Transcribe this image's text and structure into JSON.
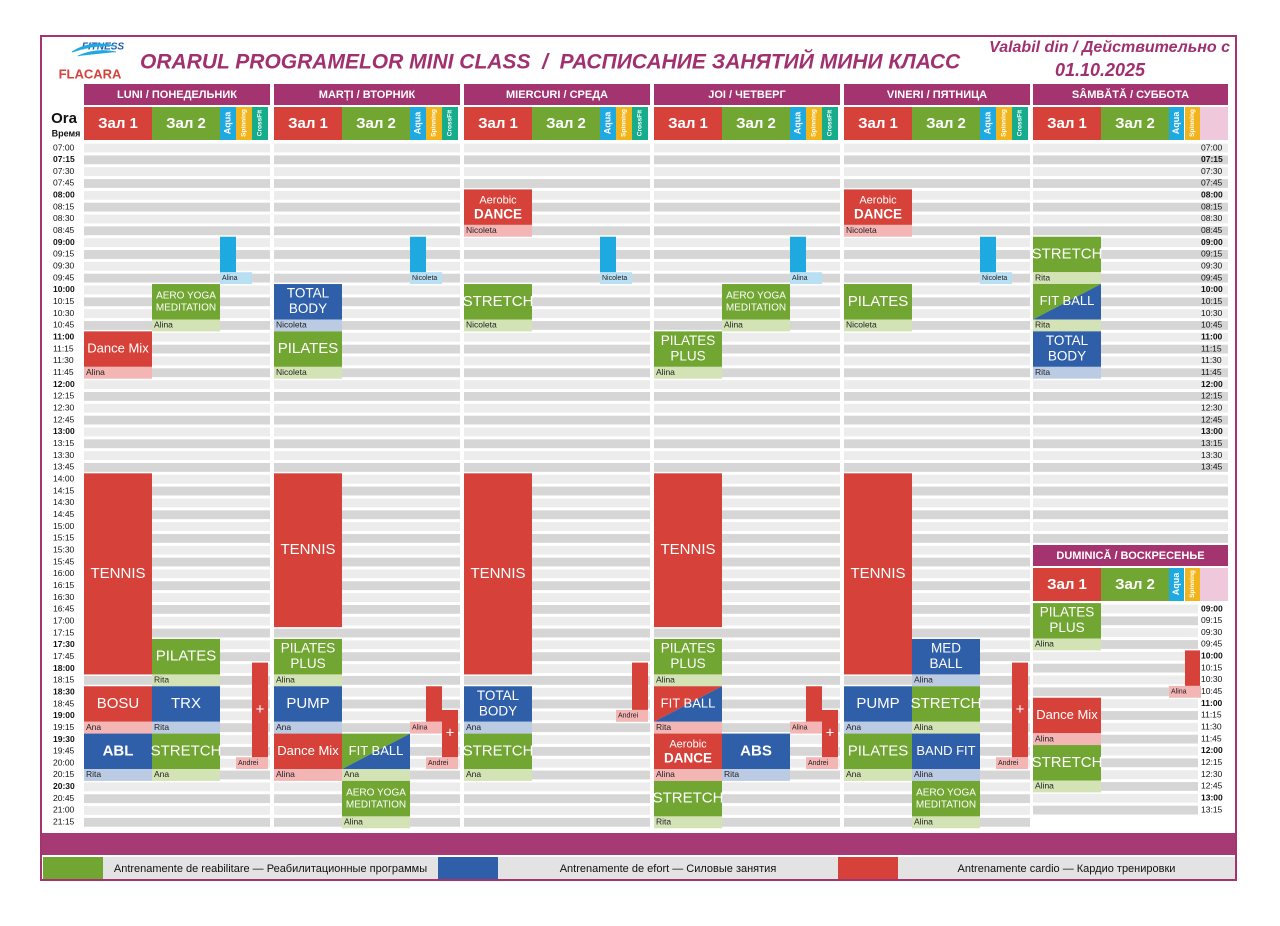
{
  "header": {
    "logo_top": "FITNESS",
    "logo_bottom": "FLACARA",
    "title": "ORARUL PROGRAMELOR MINI CLASS  /  РАСПИСАНИЕ ЗАНЯТИЙ МИНИ КЛАСС",
    "valid_label": "Valabil din / Действительно с",
    "valid_date": "01.10.2025"
  },
  "corner": {
    "label": "Ora",
    "sublabel": "Время"
  },
  "rooms": [
    {
      "name": "Зал 1",
      "color": "#d6423a"
    },
    {
      "name": "Зал 2",
      "color": "#72a633"
    },
    {
      "name": "Aqua",
      "color": "#1ea9e1"
    },
    {
      "name": "Spinning",
      "color": "#f2b41c"
    },
    {
      "name": "CrossFit",
      "color": "#17ad8c"
    }
  ],
  "kinds": {
    "rehab": {
      "color": "#72a633",
      "light": "#d3e3b5",
      "label": "Antrenamente de reabilitare — Реабилитационные программы"
    },
    "effort": {
      "color": "#2f5fa9",
      "light": "#bccbe4",
      "label": "Antrenamente de efort — Силовые занятия"
    },
    "cardio": {
      "color": "#d6423a",
      "light": "#f4b5b5",
      "label": "Antrenamente cardio — Кардио тренировки"
    }
  },
  "legend": [
    "rehab",
    "effort",
    "cardio"
  ],
  "times": [
    "07:00",
    "07:15",
    "07:30",
    "07:45",
    "08:00",
    "08:15",
    "08:30",
    "08:45",
    "09:00",
    "09:15",
    "09:30",
    "09:45",
    "10:00",
    "10:15",
    "10:30",
    "10:45",
    "11:00",
    "11:15",
    "11:30",
    "11:45",
    "12:00",
    "12:15",
    "12:30",
    "12:45",
    "13:00",
    "13:15",
    "13:30",
    "13:45",
    "14:00",
    "14:15",
    "14:30",
    "14:45",
    "15:00",
    "15:15",
    "15:30",
    "15:45",
    "16:00",
    "16:15",
    "16:30",
    "16:45",
    "17:00",
    "17:15",
    "17:30",
    "17:45",
    "18:00",
    "18:15",
    "18:30",
    "18:45",
    "19:00",
    "19:15",
    "19:30",
    "19:45",
    "20:00",
    "20:15",
    "20:30",
    "20:45",
    "21:00",
    "21:15"
  ],
  "bold_times": [
    "07:15",
    "08:00",
    "09:00",
    "10:00",
    "11:00",
    "12:00",
    "13:00",
    "17:30",
    "18:00",
    "18:30",
    "19:00",
    "19:30",
    "20:30"
  ],
  "days": [
    {
      "name": "LUNI / ПОНЕДЕЛЬНИК",
      "rooms": [
        0,
        1,
        2,
        3,
        4
      ]
    },
    {
      "name": "MARȚI / ВТОРНИК",
      "rooms": [
        0,
        1,
        2,
        3,
        4
      ]
    },
    {
      "name": "MIERCURI / СРЕДА",
      "rooms": [
        0,
        1,
        2,
        3,
        4
      ]
    },
    {
      "name": "JOI / ЧЕТВЕРГ",
      "rooms": [
        0,
        1,
        2,
        3,
        4
      ]
    },
    {
      "name": "VINERI / ПЯТНИЦА",
      "rooms": [
        0,
        1,
        2,
        3,
        4
      ]
    },
    {
      "name": "SÂMBĂTĂ / СУББОТА",
      "rooms": [
        0,
        1,
        2,
        3
      ],
      "time_range": [
        "07:00",
        "13:45"
      ]
    },
    {
      "name": "DUMINICĂ / ВОСКРЕСЕНЬЕ",
      "rooms": [
        0,
        1,
        2,
        3
      ],
      "time_range": [
        "09:00",
        "13:15"
      ]
    }
  ],
  "classes": [
    {
      "day": 0,
      "room": 0,
      "start": "11:00",
      "rows": 3,
      "lines": [
        "Dance Mix"
      ],
      "trainer": "Alina",
      "kind": "cardio"
    },
    {
      "day": 0,
      "room": 1,
      "start": "10:00",
      "rows": 3,
      "lines": [
        "AERO YOGA",
        "MEDITATION"
      ],
      "trainer": "Alina",
      "kind": "rehab"
    },
    {
      "day": 0,
      "room": 2,
      "start": "09:00",
      "rows": 3,
      "lines": [],
      "trainer": "Alina"
    },
    {
      "day": 0,
      "room": 0,
      "start": "14:00",
      "rows": 17,
      "lines": [
        "TENNIS"
      ],
      "kind": "cardio"
    },
    {
      "day": 0,
      "room": 1,
      "start": "17:30",
      "rows": 3,
      "lines": [
        "PILATES"
      ],
      "trainer": "Rita",
      "kind": "rehab"
    },
    {
      "day": 0,
      "room": 0,
      "start": "18:30",
      "rows": 3,
      "lines": [
        "BOSU"
      ],
      "trainer": "Ana",
      "kind": "cardio"
    },
    {
      "day": 0,
      "room": 1,
      "start": "18:30",
      "rows": 3,
      "lines": [
        "TRX"
      ],
      "trainer": "Rita",
      "kind": "effort"
    },
    {
      "day": 0,
      "room": 0,
      "start": "19:30",
      "rows": 3,
      "lines": [
        "ABL"
      ],
      "trainer": "Rita",
      "kind": "effort"
    },
    {
      "day": 0,
      "room": 1,
      "start": "19:30",
      "rows": 3,
      "lines": [
        "STRETCH"
      ],
      "trainer": "Ana",
      "kind": "rehab"
    },
    {
      "day": 0,
      "room": 4,
      "start": "18:00",
      "rows": 8,
      "lines": [
        "+"
      ],
      "trainer": "Andrei",
      "kind": "cardio"
    },
    {
      "day": 1,
      "room": 2,
      "start": "09:00",
      "rows": 3,
      "lines": [],
      "trainer": "Nicoleta"
    },
    {
      "day": 1,
      "room": 0,
      "start": "10:00",
      "rows": 3,
      "lines": [
        "TOTAL",
        "BODY"
      ],
      "trainer": "Nicoleta",
      "kind": "effort"
    },
    {
      "day": 1,
      "room": 0,
      "start": "11:00",
      "rows": 3,
      "lines": [
        "PILATES"
      ],
      "trainer": "Nicoleta",
      "kind": "rehab"
    },
    {
      "day": 1,
      "room": 0,
      "start": "14:00",
      "rows": 13,
      "lines": [
        "TENNIS"
      ],
      "kind": "cardio"
    },
    {
      "day": 1,
      "room": 0,
      "start": "17:30",
      "rows": 3,
      "lines": [
        "PILATES",
        "PLUS"
      ],
      "trainer": "Alina",
      "kind": "rehab"
    },
    {
      "day": 1,
      "room": 0,
      "start": "18:30",
      "rows": 3,
      "lines": [
        "PUMP"
      ],
      "trainer": "Ana",
      "kind": "effort"
    },
    {
      "day": 1,
      "room": 0,
      "start": "19:30",
      "rows": 3,
      "lines": [
        "Dance Mix"
      ],
      "trainer": "Alina",
      "kind": "cardio"
    },
    {
      "day": 1,
      "room": 1,
      "start": "19:30",
      "rows": 3,
      "lines": [
        "FIT BALL"
      ],
      "trainer": "Ana",
      "kind": [
        "rehab",
        "effort"
      ]
    },
    {
      "day": 1,
      "room": 1,
      "start": "20:30",
      "rows": 3,
      "lines": [
        "AERO YOGA",
        "MEDITATION"
      ],
      "trainer": "Alina",
      "kind": "rehab"
    },
    {
      "day": 1,
      "room": 3,
      "start": "18:30",
      "rows": 3,
      "lines": [],
      "trainer": "Alina",
      "kind": "cardio"
    },
    {
      "day": 1,
      "room": 4,
      "start": "19:00",
      "rows": 4,
      "lines": [
        "+"
      ],
      "trainer": "Andrei",
      "kind": "cardio"
    },
    {
      "day": 2,
      "room": 0,
      "start": "08:00",
      "rows": 3,
      "lines": [
        "Aerobic",
        "DANCE"
      ],
      "trainer": "Nicoleta",
      "kind": "cardio"
    },
    {
      "day": 2,
      "room": 2,
      "start": "09:00",
      "rows": 3,
      "lines": [],
      "trainer": "Nicoleta"
    },
    {
      "day": 2,
      "room": 0,
      "start": "10:00",
      "rows": 3,
      "lines": [
        "STRETCH"
      ],
      "trainer": "Nicoleta",
      "kind": "rehab"
    },
    {
      "day": 2,
      "room": 0,
      "start": "14:00",
      "rows": 17,
      "lines": [
        "TENNIS"
      ],
      "kind": "cardio"
    },
    {
      "day": 2,
      "room": 0,
      "start": "18:30",
      "rows": 3,
      "lines": [
        "TOTAL",
        "BODY"
      ],
      "trainer": "Ana",
      "kind": "effort"
    },
    {
      "day": 2,
      "room": 0,
      "start": "19:30",
      "rows": 3,
      "lines": [
        "STRETCH"
      ],
      "trainer": "Ana",
      "kind": "rehab"
    },
    {
      "day": 2,
      "room": 4,
      "start": "18:00",
      "rows": 4,
      "lines": [],
      "trainer": "Andrei",
      "kind": "cardio"
    },
    {
      "day": 3,
      "room": 2,
      "start": "09:00",
      "rows": 3,
      "lines": [],
      "trainer": "Alina"
    },
    {
      "day": 3,
      "room": 1,
      "start": "10:00",
      "rows": 3,
      "lines": [
        "AERO YOGA",
        "MEDITATION"
      ],
      "trainer": "Alina",
      "kind": "rehab"
    },
    {
      "day": 3,
      "room": 0,
      "start": "11:00",
      "rows": 3,
      "lines": [
        "PILATES",
        "PLUS"
      ],
      "trainer": "Alina",
      "kind": "rehab"
    },
    {
      "day": 3,
      "room": 0,
      "start": "14:00",
      "rows": 13,
      "lines": [
        "TENNIS"
      ],
      "kind": "cardio"
    },
    {
      "day": 3,
      "room": 0,
      "start": "17:30",
      "rows": 3,
      "lines": [
        "PILATES",
        "PLUS"
      ],
      "trainer": "Alina",
      "kind": "rehab"
    },
    {
      "day": 3,
      "room": 0,
      "start": "18:30",
      "rows": 3,
      "lines": [
        "FIT BALL"
      ],
      "trainer": "Rita",
      "kind": [
        "cardio",
        "effort"
      ]
    },
    {
      "day": 3,
      "room": 0,
      "start": "19:30",
      "rows": 3,
      "lines": [
        "Aerobic",
        "DANCE"
      ],
      "trainer": "Alina",
      "kind": "cardio"
    },
    {
      "day": 3,
      "room": 1,
      "start": "19:30",
      "rows": 3,
      "lines": [
        "ABS"
      ],
      "trainer": "Rita",
      "kind": "effort"
    },
    {
      "day": 3,
      "room": 0,
      "start": "20:30",
      "rows": 3,
      "lines": [
        "STRETCH"
      ],
      "trainer": "Rita",
      "kind": "rehab"
    },
    {
      "day": 3,
      "room": 3,
      "start": "18:30",
      "rows": 3,
      "lines": [],
      "trainer": "Alina",
      "kind": "cardio"
    },
    {
      "day": 3,
      "room": 4,
      "start": "19:00",
      "rows": 4,
      "lines": [
        "+"
      ],
      "trainer": "Andrei",
      "kind": "cardio"
    },
    {
      "day": 4,
      "room": 0,
      "start": "08:00",
      "rows": 3,
      "lines": [
        "Aerobic",
        "DANCE"
      ],
      "trainer": "Nicoleta",
      "kind": "cardio"
    },
    {
      "day": 4,
      "room": 2,
      "start": "09:00",
      "rows": 3,
      "lines": [],
      "trainer": "Nicoleta"
    },
    {
      "day": 4,
      "room": 0,
      "start": "10:00",
      "rows": 3,
      "lines": [
        "PILATES"
      ],
      "trainer": "Nicoleta",
      "kind": "rehab"
    },
    {
      "day": 4,
      "room": 0,
      "start": "14:00",
      "rows": 17,
      "lines": [
        "TENNIS"
      ],
      "kind": "cardio"
    },
    {
      "day": 4,
      "room": 1,
      "start": "17:30",
      "rows": 3,
      "lines": [
        "MED",
        "BALL"
      ],
      "trainer": "Alina",
      "kind": "effort"
    },
    {
      "day": 4,
      "room": 0,
      "start": "18:30",
      "rows": 3,
      "lines": [
        "PUMP"
      ],
      "trainer": "Ana",
      "kind": "effort"
    },
    {
      "day": 4,
      "room": 1,
      "start": "18:30",
      "rows": 3,
      "lines": [
        "STRETCH"
      ],
      "trainer": "Alina",
      "kind": "rehab"
    },
    {
      "day": 4,
      "room": 0,
      "start": "19:30",
      "rows": 3,
      "lines": [
        "PILATES"
      ],
      "trainer": "Ana",
      "kind": "rehab"
    },
    {
      "day": 4,
      "room": 1,
      "start": "19:30",
      "rows": 3,
      "lines": [
        "BAND FIT"
      ],
      "trainer": "Alina",
      "kind": "effort"
    },
    {
      "day": 4,
      "room": 1,
      "start": "20:30",
      "rows": 3,
      "lines": [
        "AERO YOGA",
        "MEDITATION"
      ],
      "trainer": "Alina",
      "kind": "rehab"
    },
    {
      "day": 4,
      "room": 4,
      "start": "18:00",
      "rows": 8,
      "lines": [
        "+"
      ],
      "trainer": "Andrei",
      "kind": "cardio"
    },
    {
      "day": 5,
      "room": 0,
      "start": "09:00",
      "rows": 3,
      "lines": [
        "STRETCH"
      ],
      "trainer": "Rita",
      "kind": "rehab"
    },
    {
      "day": 5,
      "room": 0,
      "start": "10:00",
      "rows": 3,
      "lines": [
        "FIT BALL"
      ],
      "trainer": "Rita",
      "kind": [
        "rehab",
        "effort"
      ]
    },
    {
      "day": 5,
      "room": 0,
      "start": "11:00",
      "rows": 3,
      "lines": [
        "TOTAL",
        "BODY"
      ],
      "trainer": "Rita",
      "kind": "effort"
    },
    {
      "day": 6,
      "room": 0,
      "start": "09:00",
      "rows": 3,
      "lines": [
        "PILATES",
        "PLUS"
      ],
      "trainer": "Alina",
      "kind": "rehab"
    },
    {
      "day": 6,
      "room": 3,
      "start": "10:00",
      "rows": 3,
      "lines": [],
      "trainer": "Alina",
      "kind": "cardio"
    },
    {
      "day": 6,
      "room": 0,
      "start": "11:00",
      "rows": 3,
      "lines": [
        "Dance Mix"
      ],
      "trainer": "Alina",
      "kind": "cardio"
    },
    {
      "day": 6,
      "room": 0,
      "start": "12:00",
      "rows": 3,
      "lines": [
        "STRETCH"
      ],
      "trainer": "Alina",
      "kind": "rehab"
    }
  ]
}
